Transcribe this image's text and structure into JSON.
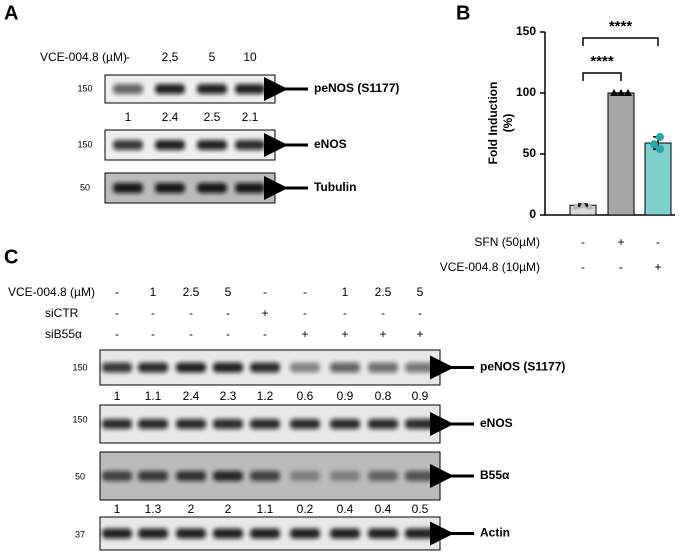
{
  "panel_a": {
    "label": "A",
    "treatment_label": "VCE-004.8 (µM)",
    "doses": [
      "-",
      "2,5",
      "5",
      "10"
    ],
    "blots": [
      {
        "mw": "150",
        "name": "peNOS (S1177)"
      },
      {
        "mw": "150",
        "name": "eNOS"
      },
      {
        "mw": "50",
        "name": "Tubulin"
      }
    ],
    "quantification": [
      1,
      2.4,
      2.5,
      2.1
    ]
  },
  "panel_b": {
    "label": "B",
    "chart_data": {
      "type": "bar",
      "ylabel": [
        "Fold Induction",
        "(%)"
      ],
      "values": [
        8,
        100,
        59
      ],
      "errors": [
        1,
        0,
        5
      ],
      "points": [
        [
          7,
          8,
          7
        ],
        [
          100,
          100,
          100
        ],
        [
          64,
          58,
          54
        ]
      ],
      "colors": [
        "#d9d9d9",
        "#a6a6a6",
        "#7fcfcf"
      ],
      "point_color": "#2aa5a5",
      "ylim": [
        0,
        150
      ],
      "yticks": [
        0,
        50,
        100,
        150
      ],
      "conditions": [
        {
          "label": "SFN (50µM)",
          "signs": [
            "-",
            "+",
            "-"
          ]
        },
        {
          "label": "VCE-004.8 (10µM)",
          "signs": [
            "-",
            "-",
            "+"
          ]
        }
      ],
      "annotations": [
        "****",
        "****"
      ]
    }
  },
  "panel_c": {
    "label": "C",
    "treatments": [
      {
        "label": "VCE-004.8 (µM)",
        "values": [
          "-",
          "1",
          "2.5",
          "5",
          "-",
          "-",
          "1",
          "2.5",
          "5"
        ]
      },
      {
        "label": "siCTR",
        "values": [
          "-",
          "-",
          "-",
          "-",
          "+",
          "-",
          "-",
          "-",
          "-"
        ]
      },
      {
        "label": "siB55α",
        "values": [
          "-",
          "-",
          "-",
          "-",
          "-",
          "+",
          "+",
          "+",
          "+"
        ]
      }
    ],
    "blots": [
      {
        "mw": "150",
        "name": "peNOS (S1177)"
      },
      {
        "mw": "150",
        "name": "eNOS"
      },
      {
        "mw": "50",
        "name": "B55α"
      },
      {
        "mw": "37",
        "name": "Actin"
      }
    ],
    "quantification_peNOS": [
      1,
      1.1,
      2.4,
      2.3,
      1.2,
      0.6,
      0.9,
      0.8,
      0.9
    ],
    "quantification_B55a": [
      1,
      1.3,
      2,
      2,
      1.1,
      0.2,
      0.4,
      0.4,
      0.5
    ]
  }
}
